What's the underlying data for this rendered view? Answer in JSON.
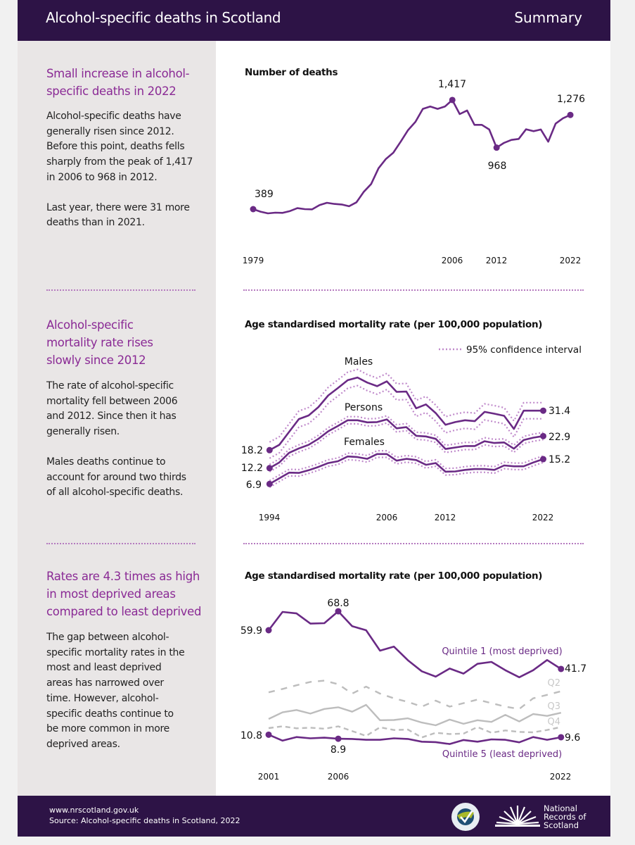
{
  "header": {
    "title": "Alcohol-specific deaths in Scotland",
    "section": "Summary"
  },
  "sections": [
    {
      "heading": "Small increase in alcohol-specific deaths in 2022",
      "paragraphs": [
        "Alcohol-specific deaths have generally risen since 2012. Before this point, deaths fells sharply from the peak of 1,417 in 2006 to 968 in 2012.",
        "Last year, there were 31 more deaths than in 2021."
      ]
    },
    {
      "heading": "Alcohol-specific mortality rate rises slowly since 2012",
      "paragraphs": [
        "The rate of alcohol-specific mortality fell between 2006 and 2012. Since then it has generally risen.",
        "Males deaths continue to account for around two thirds of all alcohol-specific deaths."
      ]
    },
    {
      "heading": "Rates are 4.3 times as high in most deprived areas compared to least deprived",
      "paragraphs": [
        "The gap between alcohol-specific mortality rates in the most and least deprived areas has narrowed over time. However, alcohol-specific deaths continue to be more common in more deprived areas."
      ]
    }
  ],
  "colors": {
    "header": "#2d1346",
    "accent": "#8a2a95",
    "line": "#6a2a85",
    "ci": "#c08acb",
    "grey": "#bdbdbd",
    "panel": "#e9e6e6"
  },
  "chart_data": [
    {
      "type": "line",
      "title": "Number of deaths",
      "x_tick_labels": [
        "1979",
        "2006",
        "2012",
        "2022"
      ],
      "x": [
        1979,
        1980,
        1981,
        1982,
        1983,
        1984,
        1985,
        1986,
        1987,
        1988,
        1989,
        1990,
        1991,
        1992,
        1993,
        1994,
        1995,
        1996,
        1997,
        1998,
        1999,
        2000,
        2001,
        2002,
        2003,
        2004,
        2005,
        2006,
        2007,
        2008,
        2009,
        2010,
        2011,
        2012,
        2013,
        2014,
        2015,
        2016,
        2017,
        2018,
        2019,
        2020,
        2021,
        2022
      ],
      "series": [
        {
          "values": [
            389,
            365,
            349,
            356,
            354,
            371,
            398,
            389,
            387,
            427,
            449,
            438,
            433,
            416,
            453,
            553,
            626,
            774,
            862,
            920,
            1024,
            1134,
            1211,
            1333,
            1355,
            1333,
            1355,
            1417,
            1284,
            1318,
            1183,
            1183,
            1139,
            968,
            1013,
            1041,
            1050,
            1141,
            1123,
            1139,
            1024,
            1194,
            1245,
            1276
          ]
        }
      ],
      "annotations": [
        {
          "x": 1979,
          "label": "389"
        },
        {
          "x": 2006,
          "label": "1,417"
        },
        {
          "x": 2012,
          "label": "968"
        },
        {
          "x": 2022,
          "label": "1,276"
        }
      ],
      "grid": false
    },
    {
      "type": "line",
      "title": "Age standardised mortality rate (per 100,000 population)",
      "legend": "95% confidence interval",
      "legend_position": "top-right",
      "x_tick_labels": [
        "1994",
        "2006",
        "2012",
        "2022"
      ],
      "x": [
        1994,
        1995,
        1996,
        1997,
        1998,
        1999,
        2000,
        2001,
        2002,
        2003,
        2004,
        2005,
        2006,
        2007,
        2008,
        2009,
        2010,
        2011,
        2012,
        2013,
        2014,
        2015,
        2016,
        2017,
        2018,
        2019,
        2020,
        2021,
        2022
      ],
      "series": [
        {
          "name": "Males",
          "start_label": "18.2",
          "end_label": "31.4",
          "ci_halfwidth": 2.7,
          "values": [
            18.2,
            20.0,
            24.3,
            28.6,
            29.8,
            32.6,
            36.5,
            39.0,
            41.6,
            42.5,
            40.8,
            39.6,
            41.2,
            37.7,
            37.8,
            32.2,
            33.5,
            30.6,
            26.7,
            27.6,
            28.2,
            27.9,
            31.0,
            30.4,
            29.7,
            25.3,
            31.4,
            31.4,
            31.4
          ]
        },
        {
          "name": "Persons",
          "start_label": "12.2",
          "end_label": "22.9",
          "ci_halfwidth": 1.2,
          "values": [
            12.2,
            14.1,
            17.3,
            18.8,
            20.0,
            22.0,
            24.5,
            26.3,
            28.2,
            28.2,
            27.5,
            27.6,
            28.5,
            25.5,
            25.9,
            23.0,
            22.8,
            22.0,
            18.6,
            19.1,
            19.6,
            19.6,
            21.2,
            20.6,
            20.8,
            18.7,
            21.6,
            22.4,
            22.9
          ]
        },
        {
          "name": "Females",
          "start_label": "6.9",
          "end_label": "15.2",
          "ci_halfwidth": 1.1,
          "values": [
            6.9,
            8.8,
            10.7,
            10.6,
            11.5,
            12.6,
            13.9,
            14.5,
            16.1,
            15.9,
            15.3,
            16.9,
            16.9,
            14.7,
            15.3,
            14.9,
            13.3,
            13.9,
            11.0,
            11.1,
            11.6,
            11.9,
            11.9,
            11.6,
            13.1,
            12.8,
            12.8,
            14.1,
            15.2
          ]
        }
      ],
      "grid": false
    },
    {
      "type": "line",
      "title": "Age standardised mortality rate (per 100,000 population)",
      "x_tick_labels": [
        "2001",
        "2006",
        "2022"
      ],
      "x": [
        2001,
        2002,
        2003,
        2004,
        2005,
        2006,
        2007,
        2008,
        2009,
        2010,
        2011,
        2012,
        2013,
        2014,
        2015,
        2016,
        2017,
        2018,
        2019,
        2020,
        2021,
        2022
      ],
      "series": [
        {
          "name": "Quintile 1 (most deprived)",
          "labels": [
            "59.9",
            "68.8",
            "41.7"
          ],
          "values": [
            59.9,
            68.5,
            67.8,
            63.0,
            63.2,
            68.8,
            61.8,
            59.9,
            50.3,
            52.2,
            45.8,
            40.6,
            38.1,
            41.9,
            39.5,
            44.1,
            45.0,
            41.1,
            37.8,
            41.1,
            45.9,
            41.7
          ]
        },
        {
          "name": "Q2",
          "values": [
            30.7,
            32.3,
            34.0,
            35.6,
            36.2,
            34.5,
            30.1,
            33.4,
            30.1,
            27.9,
            26.2,
            24.0,
            26.8,
            24.0,
            25.6,
            27.3,
            25.6,
            24.0,
            22.9,
            27.9,
            29.5,
            31.2
          ]
        },
        {
          "name": "Q3",
          "values": [
            18.2,
            21.3,
            22.4,
            20.7,
            22.9,
            23.7,
            21.6,
            24.8,
            17.6,
            17.7,
            18.5,
            16.5,
            15.2,
            17.9,
            15.9,
            17.6,
            16.8,
            20.1,
            17.0,
            20.5,
            19.6,
            21.1
          ]
        },
        {
          "name": "Q4",
          "values": [
            13.9,
            14.7,
            13.8,
            14.1,
            13.6,
            14.7,
            12.5,
            10.2,
            14.3,
            13.0,
            13.2,
            9.5,
            11.7,
            11.1,
            11.3,
            14.4,
            11.7,
            12.8,
            12.1,
            11.9,
            13.0,
            14.4
          ]
        },
        {
          "name": "Quintile 5 (least deprived)",
          "labels": [
            "10.8",
            "8.9",
            "9.6"
          ],
          "values": [
            10.8,
            8.0,
            9.7,
            9.1,
            9.4,
            8.9,
            8.8,
            8.4,
            8.4,
            9.1,
            8.8,
            7.5,
            7.3,
            6.4,
            8.3,
            7.5,
            8.6,
            8.4,
            7.2,
            9.7,
            8.4,
            9.6
          ]
        }
      ],
      "grid": false
    }
  ],
  "footer": {
    "url": "www.nrscotland.gov.uk",
    "source": "Source:  Alcohol-specific deaths in Scotland, 2022",
    "logo_ns": "National Statistics",
    "logo_nrs": [
      "National",
      "Records of",
      "Scotland"
    ]
  }
}
